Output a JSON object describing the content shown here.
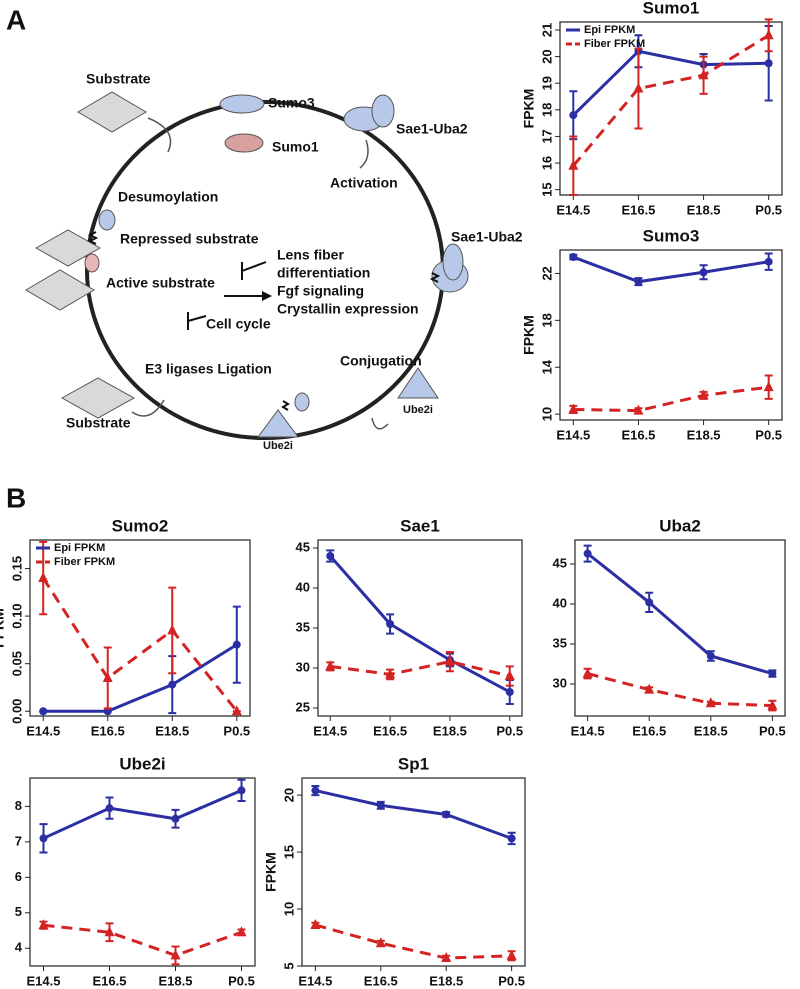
{
  "panel_labels": [
    "A",
    "B"
  ],
  "diagram": {
    "labels": [
      "Substrate",
      "Sumo3",
      "Sae1-Uba2",
      "Sumo1",
      "Activation",
      "Desumoylation",
      "Repressed substrate",
      "Lens fiber",
      "differentiation",
      "Fgf signaling",
      "Crystallin expression",
      "Active substrate",
      "Cell cycle",
      "Sae1-Uba2",
      "Conjugation",
      "E3 ligases Ligation",
      "Substrate",
      "Ube2i",
      "Ube2i"
    ]
  },
  "chart_data": [
    {
      "type": "line",
      "title": "Sumo1",
      "y_label": "FPKM",
      "categories": [
        "E14.5",
        "E16.5",
        "E18.5",
        "P0.5"
      ],
      "legend": "upper left",
      "ylim": [
        14.8,
        21.3
      ],
      "yticks": [
        15,
        16,
        17,
        18,
        19,
        20,
        21
      ],
      "series": [
        {
          "name": "Epi FPKM",
          "color": "#2b2fa3",
          "linestyle": "solid",
          "marker": "circle",
          "values": [
            17.8,
            20.2,
            19.7,
            19.75
          ],
          "errors": [
            0.9,
            0.6,
            0.4,
            1.4
          ]
        },
        {
          "name": "Fiber FPKM",
          "color": "#d42323",
          "linestyle": "dashed",
          "marker": "triangle",
          "values": [
            15.9,
            18.8,
            19.3,
            20.8
          ],
          "errors": [
            1.1,
            1.5,
            0.7,
            0.6
          ]
        }
      ]
    },
    {
      "type": "line",
      "title": "Sumo3",
      "y_label": "FPKM",
      "categories": [
        "E14.5",
        "E16.5",
        "E18.5",
        "P0.5"
      ],
      "ylim": [
        9.5,
        24
      ],
      "yticks": [
        10,
        14,
        18,
        22
      ],
      "series": [
        {
          "color": "#2b2fa3",
          "linestyle": "solid",
          "marker": "circle",
          "values": [
            23.4,
            21.3,
            22.1,
            23.0
          ],
          "errors": [
            0.2,
            0.3,
            0.6,
            0.7
          ]
        },
        {
          "color": "#d42323",
          "linestyle": "dashed",
          "marker": "triangle",
          "values": [
            10.4,
            10.3,
            11.6,
            12.3
          ],
          "errors": [
            0.3,
            0.2,
            0.3,
            1.0
          ]
        }
      ]
    },
    {
      "type": "line",
      "title": "Sumo2",
      "y_label": "FPKM",
      "categories": [
        "E14.5",
        "E16.5",
        "E18.5",
        "P0.5"
      ],
      "legend": "upper left",
      "ylim": [
        -0.005,
        0.18
      ],
      "yticks": [
        {
          "value": 0,
          "label": "0.00"
        },
        0.05,
        {
          "value": 0.1,
          "label": "0.10"
        },
        0.15
      ],
      "series": [
        {
          "name": "Epi FPKM",
          "color": "#2b2fa3",
          "linestyle": "solid",
          "marker": "circle",
          "values": [
            0,
            0,
            0.028,
            0.07
          ],
          "errors": [
            0,
            0,
            0.03,
            0.04
          ]
        },
        {
          "name": "Fiber FPKM",
          "color": "#d42323",
          "linestyle": "dashed",
          "marker": "triangle",
          "values": [
            0.14,
            0.035,
            0.085,
            0
          ],
          "errors": [
            0.038,
            0.032,
            0.045,
            0
          ]
        }
      ]
    },
    {
      "type": "line",
      "title": "Sae1",
      "categories": [
        "E14.5",
        "E16.5",
        "E18.5",
        "P0.5"
      ],
      "ylim": [
        24,
        46
      ],
      "yticks": [
        25,
        30,
        35,
        40,
        45
      ],
      "series": [
        {
          "color": "#2b2fa3",
          "linestyle": "solid",
          "marker": "circle",
          "values": [
            44,
            35.5,
            31,
            27
          ],
          "errors": [
            0.7,
            1.2,
            0.8,
            1.5
          ]
        },
        {
          "color": "#d42323",
          "linestyle": "dashed",
          "marker": "triangle",
          "values": [
            30.2,
            29.2,
            30.8,
            29
          ],
          "errors": [
            0.5,
            0.6,
            1.2,
            1.2
          ]
        }
      ]
    },
    {
      "type": "line",
      "title": "Uba2",
      "categories": [
        "E14.5",
        "E16.5",
        "E18.5",
        "P0.5"
      ],
      "ylim": [
        26,
        48
      ],
      "yticks": [
        30,
        35,
        40,
        45
      ],
      "series": [
        {
          "color": "#2b2fa3",
          "linestyle": "solid",
          "marker": "circle",
          "values": [
            46.3,
            40.2,
            33.5,
            31.3
          ],
          "errors": [
            1,
            1.2,
            0.6,
            0.4
          ]
        },
        {
          "color": "#d42323",
          "linestyle": "dashed",
          "marker": "triangle",
          "values": [
            31.3,
            29.3,
            27.6,
            27.3
          ],
          "errors": [
            0.6,
            0.3,
            0.2,
            0.6
          ]
        }
      ]
    },
    {
      "type": "line",
      "title": "Ube2i",
      "y_label": "FPKM",
      "categories": [
        "E14.5",
        "E16.5",
        "E18.5",
        "P0.5"
      ],
      "ylim": [
        3.5,
        8.8
      ],
      "yticks": [
        4,
        5,
        6,
        7,
        8
      ],
      "series": [
        {
          "color": "#2b2fa3",
          "linestyle": "solid",
          "marker": "circle",
          "values": [
            7.1,
            7.95,
            7.65,
            8.45
          ],
          "errors": [
            0.4,
            0.3,
            0.25,
            0.3
          ]
        },
        {
          "color": "#d42323",
          "linestyle": "dashed",
          "marker": "triangle",
          "values": [
            4.65,
            4.45,
            3.8,
            4.45
          ],
          "errors": [
            0.1,
            0.25,
            0.25,
            0.08
          ]
        }
      ]
    },
    {
      "type": "line",
      "title": "Sp1",
      "y_label": "FPKM",
      "categories": [
        "E14.5",
        "E16.5",
        "E18.5",
        "P0.5"
      ],
      "ylim": [
        5,
        21.5
      ],
      "yticks": [
        5,
        10,
        15,
        20
      ],
      "series": [
        {
          "color": "#2b2fa3",
          "linestyle": "solid",
          "marker": "circle",
          "values": [
            20.4,
            19.1,
            18.3,
            16.2
          ],
          "errors": [
            0.4,
            0.3,
            0.2,
            0.5
          ]
        },
        {
          "color": "#d42323",
          "linestyle": "dashed",
          "marker": "triangle",
          "values": [
            8.6,
            7.0,
            5.7,
            5.9
          ],
          "errors": [
            0.2,
            0.2,
            0.2,
            0.4
          ]
        }
      ]
    }
  ]
}
